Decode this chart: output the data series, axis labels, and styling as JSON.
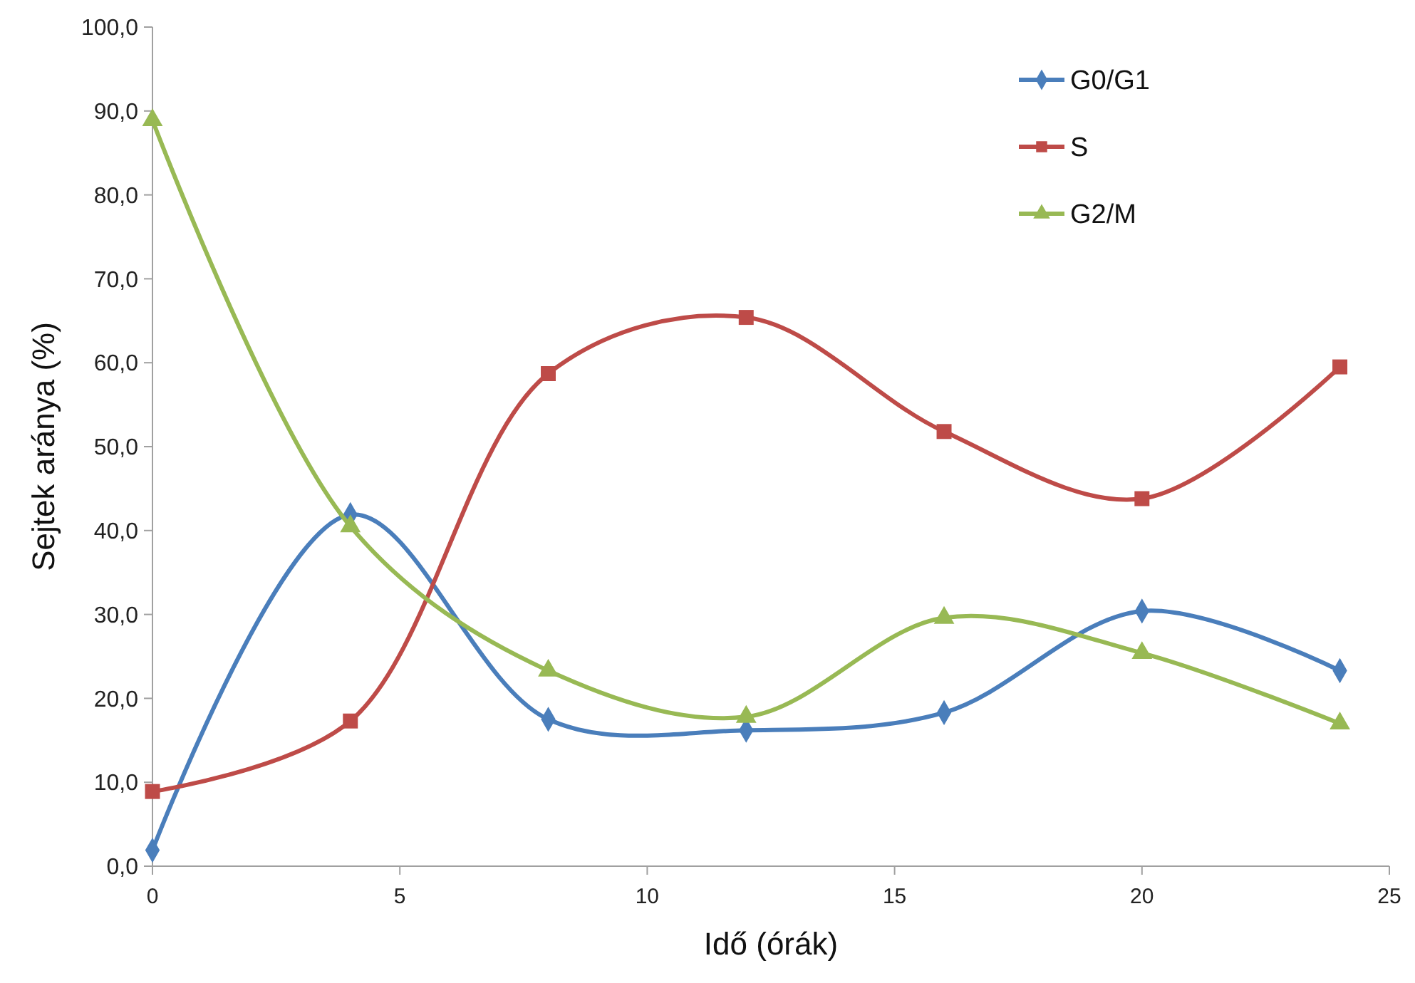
{
  "chart_data": {
    "type": "line",
    "xlabel": "Idő (órák)",
    "ylabel": "Sejtek aránya (%)",
    "x": [
      0,
      4,
      8,
      12,
      16,
      20,
      24
    ],
    "series": [
      {
        "name": "G0/G1",
        "color": "#4a7ebb",
        "marker": "diamond",
        "values": [
          1.9,
          41.9,
          17.5,
          16.2,
          18.3,
          30.4,
          23.3
        ]
      },
      {
        "name": "S",
        "color": "#be4b48",
        "marker": "square",
        "values": [
          8.9,
          17.3,
          58.7,
          65.4,
          51.8,
          43.8,
          59.5
        ]
      },
      {
        "name": "G2/M",
        "color": "#98b954",
        "marker": "triangle",
        "values": [
          88.9,
          40.5,
          23.3,
          17.8,
          29.6,
          25.4,
          17.0
        ]
      }
    ],
    "xlim": [
      0,
      25
    ],
    "xticks": [
      0,
      5,
      10,
      15,
      20,
      25
    ],
    "ylim": [
      0,
      100
    ],
    "yticks": [
      {
        "value": 0,
        "label": "0,0"
      },
      {
        "value": 10,
        "label": "10,0"
      },
      {
        "value": 20,
        "label": "20,0"
      },
      {
        "value": 30,
        "label": "30,0"
      },
      {
        "value": 40,
        "label": "40,0"
      },
      {
        "value": 50,
        "label": "50,0"
      },
      {
        "value": 60,
        "label": "60,0"
      },
      {
        "value": 70,
        "label": "70,0"
      },
      {
        "value": 80,
        "label": "80,0"
      },
      {
        "value": 90,
        "label": "90,0"
      },
      {
        "value": 100,
        "label": "100,0"
      }
    ],
    "grid": false,
    "legend": "top right",
    "line_style": "solid"
  }
}
